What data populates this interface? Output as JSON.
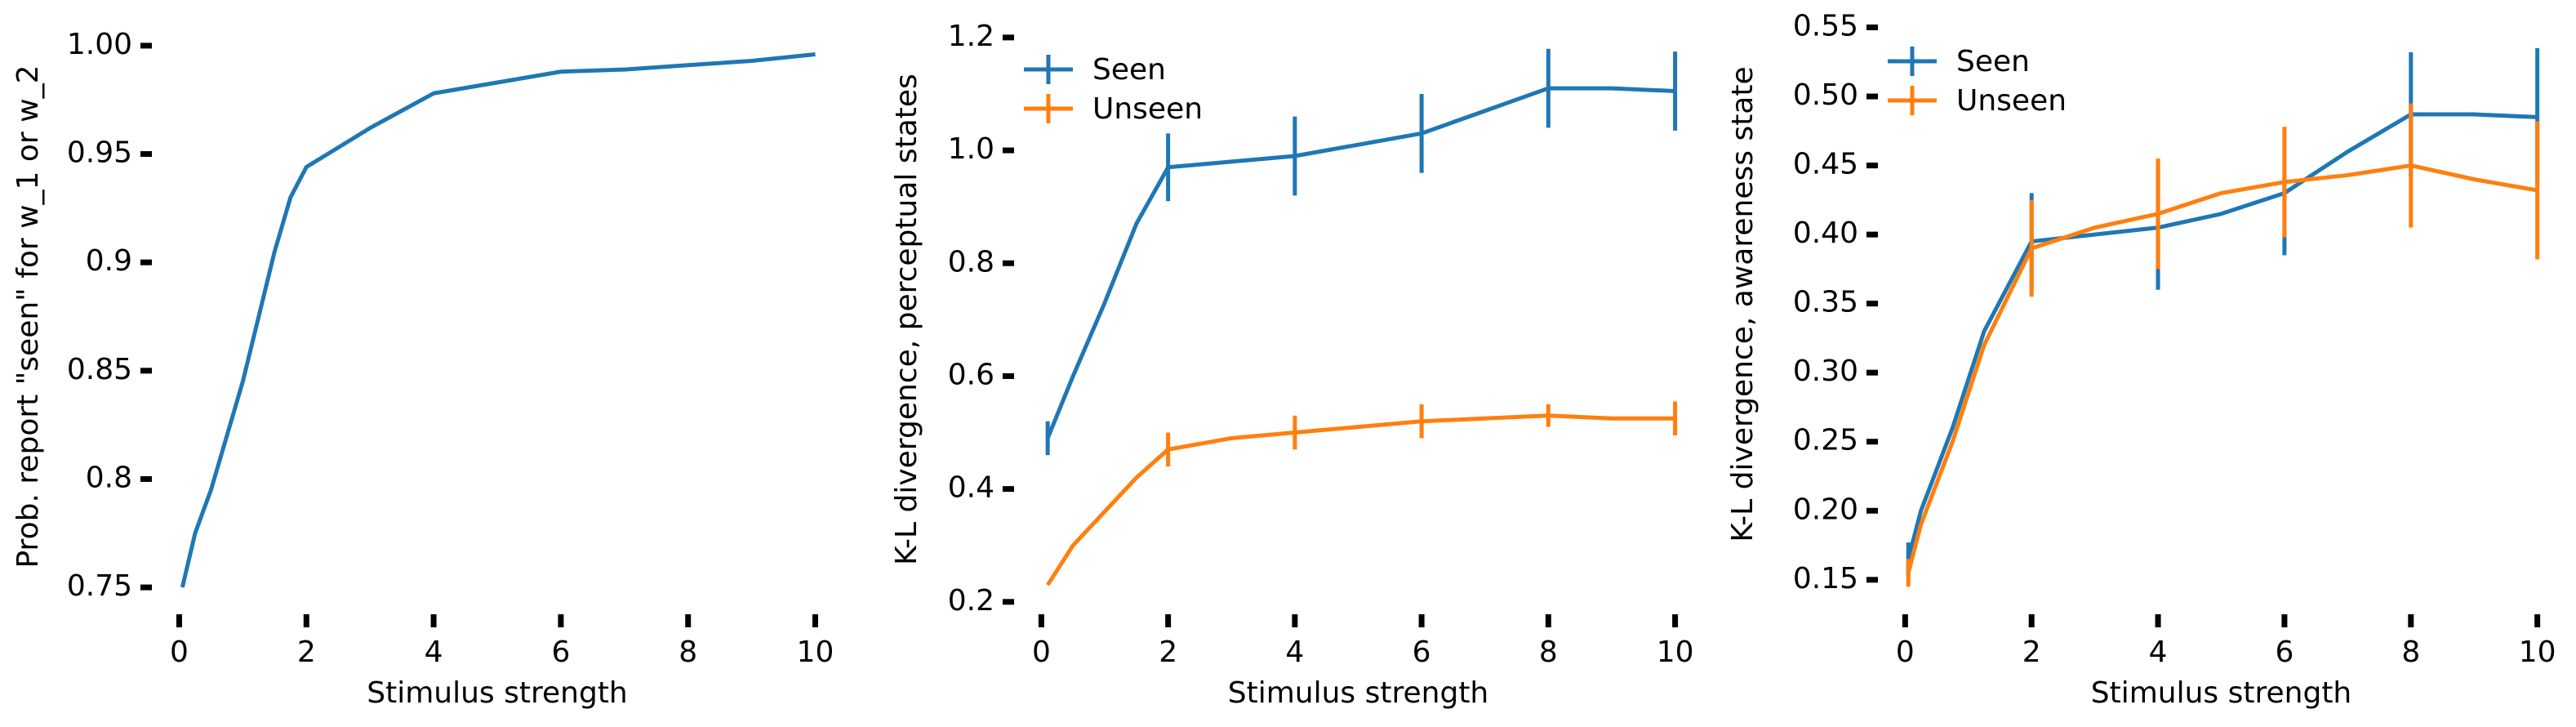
{
  "chart_data": [
    {
      "type": "line",
      "xlabel": "Stimulus strength",
      "ylabel": "Prob. report \"seen\" for w_1 or w_2",
      "x": [
        0.05,
        0.25,
        0.5,
        0.75,
        1,
        1.25,
        1.5,
        1.75,
        2,
        2.5,
        3,
        3.5,
        4,
        5,
        6,
        7,
        8,
        9,
        10
      ],
      "series": [
        {
          "color": "#1f77b4",
          "values": [
            0.75,
            0.775,
            0.795,
            0.82,
            0.845,
            0.875,
            0.905,
            0.93,
            0.944,
            0.953,
            0.962,
            0.97,
            0.978,
            0.983,
            0.988,
            0.989,
            0.991,
            0.993,
            0.996
          ]
        }
      ],
      "xlim": [
        -0.25,
        10.25
      ],
      "xticks": [
        0,
        2,
        4,
        6,
        8,
        10
      ],
      "ylim": [
        0.744,
        1.006
      ],
      "yticks": [
        0.75,
        0.8,
        0.85,
        0.9,
        0.95,
        {
          "value": 1,
          "label": "1.00"
        }
      ]
    },
    {
      "type": "line",
      "xlabel": "Stimulus strength",
      "ylabel": "K-L divergence, perceptual states",
      "x": [
        0.1,
        0.5,
        1,
        1.5,
        2,
        3,
        4,
        5,
        6,
        7,
        8,
        9,
        10
      ],
      "series": [
        {
          "name": "Seen",
          "color": "#1f77b4",
          "values": [
            0.49,
            0.6,
            0.73,
            0.87,
            0.97,
            0.98,
            0.99,
            1.01,
            1.03,
            1.07,
            1.11,
            1.11,
            1.105
          ],
          "errors": [
            0.03,
            null,
            null,
            null,
            0.06,
            null,
            0.07,
            null,
            0.07,
            null,
            0.07,
            null,
            0.07
          ]
        },
        {
          "name": "Unseen",
          "color": "#ff7f0e",
          "values": [
            0.23,
            0.3,
            0.36,
            0.42,
            0.47,
            0.49,
            0.5,
            0.51,
            0.52,
            0.525,
            0.53,
            0.525,
            0.525
          ],
          "errors": [
            null,
            null,
            null,
            null,
            0.03,
            null,
            0.03,
            null,
            0.03,
            null,
            0.02,
            null,
            0.03
          ]
        }
      ],
      "legend": "upper left",
      "xlim": [
        -0.25,
        10.25
      ],
      "xticks": [
        0,
        2,
        4,
        6,
        8,
        10
      ],
      "ylim": [
        0.178,
        1.223
      ],
      "yticks": [
        0.2,
        0.4,
        0.6,
        0.8,
        {
          "value": 1,
          "label": "1.0"
        },
        1.2
      ]
    },
    {
      "type": "line",
      "xlabel": "Stimulus strength",
      "ylabel": "K-L divergence, awareness state",
      "x": [
        0.05,
        0.25,
        0.75,
        1.25,
        2,
        3,
        4,
        5,
        6,
        7,
        8,
        9,
        10
      ],
      "series": [
        {
          "name": "Seen",
          "color": "#1f77b4",
          "values": [
            0.165,
            0.2,
            0.26,
            0.33,
            0.395,
            0.4,
            0.405,
            0.415,
            0.43,
            0.46,
            0.487,
            0.487,
            0.485
          ],
          "errors": [
            0.012,
            null,
            null,
            null,
            0.035,
            null,
            0.045,
            null,
            0.045,
            null,
            0.045,
            null,
            0.05
          ]
        },
        {
          "name": "Unseen",
          "color": "#ff7f0e",
          "values": [
            0.155,
            0.19,
            0.25,
            0.32,
            0.39,
            0.405,
            0.415,
            0.43,
            0.438,
            0.443,
            0.45,
            0.44,
            0.432
          ],
          "errors": [
            0.01,
            null,
            null,
            null,
            0.035,
            null,
            0.04,
            null,
            0.04,
            null,
            0.045,
            null,
            0.05
          ]
        }
      ],
      "legend": "upper left",
      "xlim": [
        -0.25,
        10.25
      ],
      "xticks": [
        0,
        2,
        4,
        6,
        8,
        10
      ],
      "ylim": [
        0.141,
        0.558
      ],
      "yticks": [
        0.15,
        {
          "value": 0.2,
          "label": "0.20"
        },
        0.25,
        {
          "value": 0.3,
          "label": "0.30"
        },
        0.35,
        {
          "value": 0.4,
          "label": "0.40"
        },
        0.45,
        {
          "value": 0.5,
          "label": "0.50"
        },
        0.55
      ]
    }
  ]
}
